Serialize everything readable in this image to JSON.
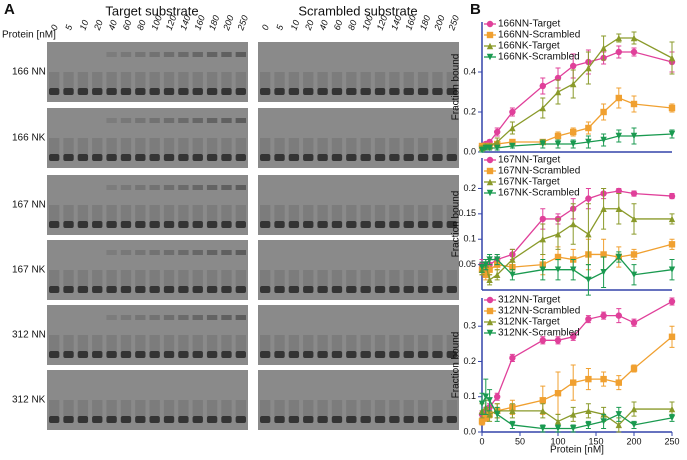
{
  "panel_a": {
    "label": "A",
    "headers": [
      "Target substrate",
      "Scrambled substrate"
    ],
    "axis_label": "Protein [nM]",
    "concentrations": [
      0,
      5,
      10,
      20,
      40,
      60,
      80,
      100,
      120,
      140,
      160,
      180,
      200,
      250
    ],
    "rows": [
      "166 NN",
      "166 NK",
      "167 NN",
      "167 NK",
      "312 NN",
      "312 NK"
    ]
  },
  "panel_b_label": "B",
  "chart_data": [
    {
      "type": "line",
      "ylabel": "Fraction bound",
      "x": [
        0,
        5,
        10,
        20,
        40,
        80,
        100,
        120,
        140,
        160,
        180,
        200,
        250
      ],
      "xlim": [
        0,
        250
      ],
      "ylim": [
        0,
        0.65
      ],
      "yticks": [
        {
          "value": 0,
          "label": "0.0"
        },
        0.2,
        0.4
      ],
      "series": [
        {
          "name": "166NN-Target",
          "color": "#e0409a",
          "marker": "circle",
          "values": [
            0.03,
            0.04,
            0.05,
            0.1,
            0.2,
            0.33,
            0.37,
            0.43,
            0.45,
            0.47,
            0.5,
            0.5,
            0.45
          ],
          "errors": [
            0.01,
            0.01,
            0.01,
            0.02,
            0.02,
            0.04,
            0.05,
            0.06,
            0.06,
            0.03,
            0.03,
            0.02,
            0.05
          ]
        },
        {
          "name": "166NN-Scrambled",
          "color": "#f0a030",
          "marker": "square",
          "values": [
            0.03,
            0.03,
            0.03,
            0.04,
            0.05,
            0.05,
            0.08,
            0.1,
            0.12,
            0.2,
            0.27,
            0.24,
            0.22
          ],
          "errors": [
            0.01,
            0.01,
            0.01,
            0.01,
            0.01,
            0.01,
            0.02,
            0.02,
            0.03,
            0.04,
            0.05,
            0.04,
            0.02
          ]
        },
        {
          "name": "166NK-Target",
          "color": "#8a9a2a",
          "marker": "triangle",
          "values": [
            0.02,
            0.03,
            0.03,
            0.05,
            0.12,
            0.22,
            0.3,
            0.34,
            0.42,
            0.52,
            0.57,
            0.57,
            0.47
          ],
          "errors": [
            0.01,
            0.01,
            0.01,
            0.02,
            0.03,
            0.05,
            0.06,
            0.07,
            0.08,
            0.06,
            0.02,
            0.03,
            0.08
          ]
        },
        {
          "name": "166NK-Scrambled",
          "color": "#1a9a50",
          "marker": "down",
          "values": [
            0.01,
            0.02,
            0.02,
            0.02,
            0.03,
            0.04,
            0.04,
            0.04,
            0.05,
            0.06,
            0.08,
            0.08,
            0.09
          ],
          "errors": [
            0.01,
            0.01,
            0.01,
            0.01,
            0.01,
            0.02,
            0.02,
            0.02,
            0.03,
            0.03,
            0.03,
            0.04,
            0.02
          ]
        }
      ]
    },
    {
      "type": "line",
      "ylabel": "Fraction bound",
      "x": [
        0,
        5,
        10,
        20,
        40,
        80,
        100,
        120,
        140,
        160,
        180,
        200,
        250
      ],
      "xlim": [
        0,
        250
      ],
      "ylim": [
        0,
        0.26
      ],
      "yticks": [
        0.05,
        0.1,
        0.15,
        0.2
      ],
      "series": [
        {
          "name": "167NN-Target",
          "color": "#e0409a",
          "marker": "circle",
          "values": [
            0.05,
            0.04,
            0.05,
            0.06,
            0.07,
            0.14,
            0.14,
            0.16,
            0.18,
            0.19,
            0.195,
            0.19,
            0.185
          ],
          "errors": [
            0.01,
            0.01,
            0.01,
            0.01,
            0.01,
            0.02,
            0.01,
            0.02,
            0.02,
            0.01,
            0.005,
            0.005,
            0.005
          ]
        },
        {
          "name": "167NN-Scrambled",
          "color": "#f0a030",
          "marker": "square",
          "values": [
            0.04,
            0.03,
            0.04,
            0.05,
            0.045,
            0.05,
            0.065,
            0.06,
            0.07,
            0.07,
            0.065,
            0.07,
            0.09
          ],
          "errors": [
            0.01,
            0.01,
            0.01,
            0.01,
            0.01,
            0.02,
            0.02,
            0.02,
            0.03,
            0.03,
            0.02,
            0.01,
            0.01
          ]
        },
        {
          "name": "167NK-Target",
          "color": "#8a9a2a",
          "marker": "triangle",
          "values": [
            0.04,
            0.05,
            0.02,
            0.03,
            0.06,
            0.1,
            0.11,
            0.13,
            0.11,
            0.16,
            0.16,
            0.14,
            0.14
          ],
          "errors": [
            0.01,
            0.01,
            0.01,
            0.01,
            0.02,
            0.03,
            0.03,
            0.04,
            0.06,
            0.04,
            0.03,
            0.03,
            0.01
          ]
        },
        {
          "name": "167NK-Scrambled",
          "color": "#1a9a50",
          "marker": "down",
          "values": [
            0.045,
            0.05,
            0.06,
            0.06,
            0.03,
            0.04,
            0.04,
            0.04,
            0.02,
            0.035,
            0.065,
            0.03,
            0.04
          ],
          "errors": [
            0.01,
            0.01,
            0.01,
            0.01,
            0.01,
            0.02,
            0.02,
            0.02,
            0.03,
            0.03,
            0.01,
            0.02,
            0.02
          ]
        }
      ]
    },
    {
      "type": "line",
      "ylabel": "Fraction bound",
      "xlabel": "Protein [nM]",
      "x": [
        0,
        5,
        10,
        20,
        40,
        80,
        100,
        120,
        140,
        160,
        180,
        200,
        250
      ],
      "xlim": [
        0,
        250
      ],
      "xticks": [
        0,
        50,
        100,
        150,
        200,
        250
      ],
      "ylim": [
        0,
        0.38
      ],
      "yticks": [
        {
          "value": 0,
          "label": "0.0"
        },
        0.1,
        0.2,
        0.3
      ],
      "series": [
        {
          "name": "312NN-Target",
          "color": "#e0409a",
          "marker": "circle",
          "values": [
            0.05,
            0.06,
            0.07,
            0.1,
            0.21,
            0.26,
            0.26,
            0.27,
            0.32,
            0.33,
            0.33,
            0.31,
            0.37
          ],
          "errors": [
            0.01,
            0.01,
            0.01,
            0.01,
            0.01,
            0.01,
            0.01,
            0.01,
            0.01,
            0.01,
            0.02,
            0.01,
            0.01
          ]
        },
        {
          "name": "312NN-Scrambled",
          "color": "#f0a030",
          "marker": "square",
          "values": [
            0.03,
            0.04,
            0.05,
            0.06,
            0.07,
            0.09,
            0.11,
            0.14,
            0.15,
            0.15,
            0.14,
            0.18,
            0.27
          ],
          "errors": [
            0.01,
            0.01,
            0.01,
            0.02,
            0.02,
            0.04,
            0.06,
            0.05,
            0.03,
            0.02,
            0.02,
            0.01,
            0.03
          ]
        },
        {
          "name": "312NK-Target",
          "color": "#8a9a2a",
          "marker": "triangle",
          "values": [
            0.06,
            0.07,
            0.05,
            0.06,
            0.06,
            0.06,
            0.03,
            0.05,
            0.06,
            0.05,
            0.02,
            0.065,
            0.065
          ],
          "errors": [
            0.02,
            0.02,
            0.02,
            0.02,
            0.02,
            0.02,
            0.02,
            0.02,
            0.02,
            0.02,
            0.02,
            0.02,
            0.02
          ]
        },
        {
          "name": "312NK-Scrambled",
          "color": "#1a9a50",
          "marker": "down",
          "values": [
            0.08,
            0.1,
            0.09,
            0.05,
            0.02,
            0.01,
            0.01,
            0.01,
            0.02,
            0.03,
            0.05,
            0.02,
            0.04
          ],
          "errors": [
            0.03,
            0.05,
            0.03,
            0.02,
            0.01,
            0.01,
            0.01,
            0.01,
            0.01,
            0.02,
            0.02,
            0.01,
            0.01
          ]
        }
      ]
    }
  ]
}
